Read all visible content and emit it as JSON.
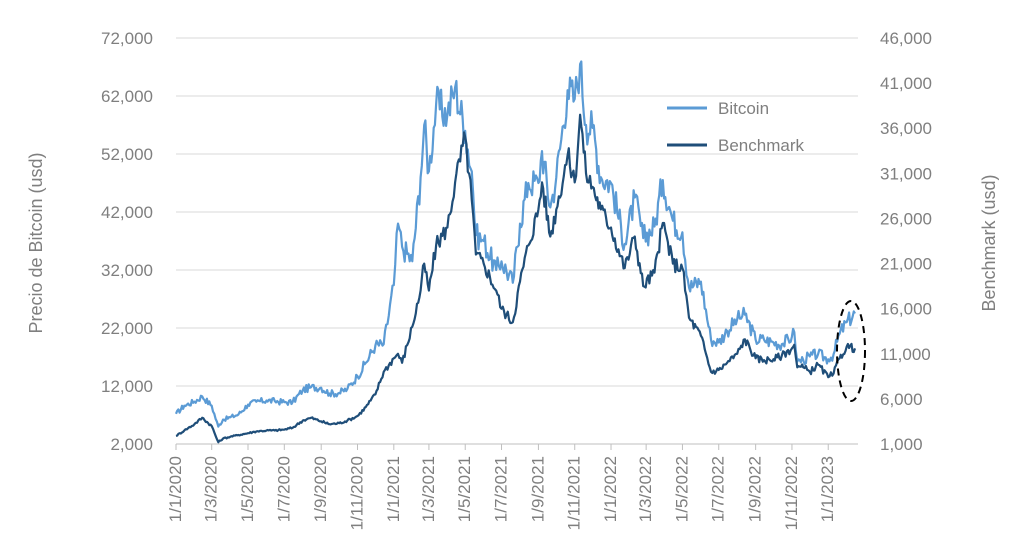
{
  "chart_data": {
    "type": "line",
    "ylabel_left": "Precio de Bitcoin (usd)",
    "ylabel_right": "Benchmark (usd)",
    "y_left_ticks": [
      "72,000",
      "62,000",
      "52,000",
      "42,000",
      "32,000",
      "22,000",
      "12,000",
      "2,000"
    ],
    "y_right_ticks": [
      "46,000",
      "41,000",
      "36,000",
      "31,000",
      "26,000",
      "21,000",
      "16,000",
      "11,000",
      "6,000",
      "1,000"
    ],
    "ylim_left": [
      2000,
      72000
    ],
    "ylim_right": [
      1000,
      46000
    ],
    "x_ticks": [
      "1/1/2020",
      "1/3/2020",
      "1/5/2020",
      "1/7/2020",
      "1/9/2020",
      "1/11/2020",
      "1/1/2021",
      "1/3/2021",
      "1/5/2021",
      "1/7/2021",
      "1/9/2021",
      "1/11/2021",
      "1/1/2022",
      "1/3/2022",
      "1/5/2022",
      "1/7/2022",
      "1/9/2022",
      "1/11/2022",
      "1/1/2023"
    ],
    "grid": "horizontal",
    "legend_position": "top-right",
    "colors": {
      "Bitcoin": "#5b9bd5",
      "Benchmark": "#1f4e79",
      "grid": "#d9d9d9",
      "axis": "#bfbfbf",
      "highlight": "#000000"
    },
    "series": [
      {
        "name": "Bitcoin",
        "axis": "left",
        "x": [
          "2020-01-01",
          "2020-01-15",
          "2020-02-01",
          "2020-02-14",
          "2020-03-01",
          "2020-03-12",
          "2020-03-20",
          "2020-04-01",
          "2020-04-15",
          "2020-05-01",
          "2020-05-15",
          "2020-06-01",
          "2020-06-15",
          "2020-07-01",
          "2020-07-15",
          "2020-08-01",
          "2020-08-15",
          "2020-09-01",
          "2020-09-15",
          "2020-10-01",
          "2020-10-15",
          "2020-11-01",
          "2020-11-15",
          "2020-12-01",
          "2020-12-15",
          "2021-01-01",
          "2021-01-08",
          "2021-01-15",
          "2021-02-01",
          "2021-02-15",
          "2021-02-21",
          "2021-03-01",
          "2021-03-13",
          "2021-04-01",
          "2021-04-14",
          "2021-05-01",
          "2021-05-12",
          "2021-05-19",
          "2021-06-01",
          "2021-06-22",
          "2021-07-01",
          "2021-07-20",
          "2021-08-01",
          "2021-08-15",
          "2021-09-01",
          "2021-09-07",
          "2021-09-21",
          "2021-10-01",
          "2021-10-20",
          "2021-11-01",
          "2021-11-10",
          "2021-11-20",
          "2021-12-01",
          "2021-12-15",
          "2022-01-01",
          "2022-01-24",
          "2022-02-10",
          "2022-02-24",
          "2022-03-15",
          "2022-03-29",
          "2022-04-15",
          "2022-05-01",
          "2022-05-12",
          "2022-06-01",
          "2022-06-18",
          "2022-07-01",
          "2022-07-15",
          "2022-08-01",
          "2022-08-14",
          "2022-09-01",
          "2022-09-15",
          "2022-10-01",
          "2022-10-15",
          "2022-11-01",
          "2022-11-05",
          "2022-11-10",
          "2022-11-20",
          "2022-12-01",
          "2022-12-15",
          "2023-01-01",
          "2023-01-10",
          "2023-01-20",
          "2023-02-01",
          "2023-02-15"
        ],
        "values": [
          7200,
          8600,
          9300,
          10200,
          8600,
          5000,
          6200,
          6600,
          7100,
          8800,
          9300,
          9500,
          9400,
          9200,
          9200,
          11300,
          11800,
          11700,
          10700,
          10800,
          11500,
          13700,
          16000,
          19000,
          19200,
          29400,
          40000,
          36000,
          33500,
          48000,
          57000,
          49000,
          60500,
          58800,
          63500,
          56000,
          49000,
          38000,
          37000,
          32000,
          33500,
          29800,
          40000,
          47000,
          47000,
          52500,
          42800,
          48000,
          63000,
          61500,
          67500,
          57000,
          56500,
          48000,
          47000,
          36500,
          44500,
          37500,
          39500,
          47500,
          40500,
          38500,
          29000,
          30000,
          20000,
          19500,
          21500,
          23500,
          24300,
          20000,
          20000,
          19500,
          19200,
          20500,
          21300,
          16200,
          16500,
          17100,
          17500,
          16600,
          17500,
          21000,
          23000,
          24500
        ]
      },
      {
        "name": "Benchmark",
        "axis": "right",
        "x": [
          "2020-01-01",
          "2020-01-15",
          "2020-02-01",
          "2020-02-14",
          "2020-03-01",
          "2020-03-12",
          "2020-03-20",
          "2020-04-01",
          "2020-04-15",
          "2020-05-01",
          "2020-05-15",
          "2020-06-01",
          "2020-06-15",
          "2020-07-01",
          "2020-07-15",
          "2020-08-01",
          "2020-08-15",
          "2020-09-01",
          "2020-09-15",
          "2020-10-01",
          "2020-10-15",
          "2020-11-01",
          "2020-11-15",
          "2020-12-01",
          "2020-12-15",
          "2021-01-01",
          "2021-01-08",
          "2021-01-15",
          "2021-02-01",
          "2021-02-15",
          "2021-02-21",
          "2021-03-01",
          "2021-03-13",
          "2021-04-01",
          "2021-04-14",
          "2021-05-01",
          "2021-05-12",
          "2021-05-19",
          "2021-06-01",
          "2021-06-22",
          "2021-07-01",
          "2021-07-20",
          "2021-08-01",
          "2021-08-15",
          "2021-09-01",
          "2021-09-07",
          "2021-09-21",
          "2021-10-01",
          "2021-10-20",
          "2021-11-01",
          "2021-11-10",
          "2021-11-20",
          "2021-12-01",
          "2021-12-15",
          "2022-01-01",
          "2022-01-24",
          "2022-02-10",
          "2022-02-24",
          "2022-03-15",
          "2022-03-29",
          "2022-04-15",
          "2022-05-01",
          "2022-05-12",
          "2022-06-01",
          "2022-06-18",
          "2022-07-01",
          "2022-07-15",
          "2022-08-01",
          "2022-08-14",
          "2022-09-01",
          "2022-09-15",
          "2022-10-01",
          "2022-10-15",
          "2022-11-01",
          "2022-11-05",
          "2022-11-10",
          "2022-11-20",
          "2022-12-01",
          "2022-12-15",
          "2023-01-01",
          "2023-01-10",
          "2023-01-20",
          "2023-02-01",
          "2023-02-15"
        ],
        "values": [
          1900,
          2500,
          3200,
          3900,
          3000,
          1200,
          1600,
          1800,
          2000,
          2200,
          2400,
          2500,
          2500,
          2600,
          2800,
          3600,
          3900,
          3500,
          3200,
          3300,
          3600,
          4100,
          5100,
          6500,
          9000,
          10500,
          11000,
          10000,
          14000,
          18000,
          21000,
          18000,
          23000,
          25000,
          30000,
          35000,
          28000,
          22000,
          21000,
          18000,
          16000,
          14500,
          19000,
          23000,
          27000,
          30000,
          24000,
          27000,
          33000,
          30000,
          37500,
          31000,
          29500,
          27000,
          25000,
          20500,
          24000,
          18500,
          20000,
          25500,
          21000,
          20500,
          15000,
          13000,
          9000,
          9200,
          10000,
          11000,
          12600,
          10500,
          10300,
          10400,
          10800,
          11600,
          12000,
          9500,
          9500,
          9000,
          9800,
          8400,
          8800,
          10500,
          11800,
          11600
        ]
      }
    ]
  }
}
